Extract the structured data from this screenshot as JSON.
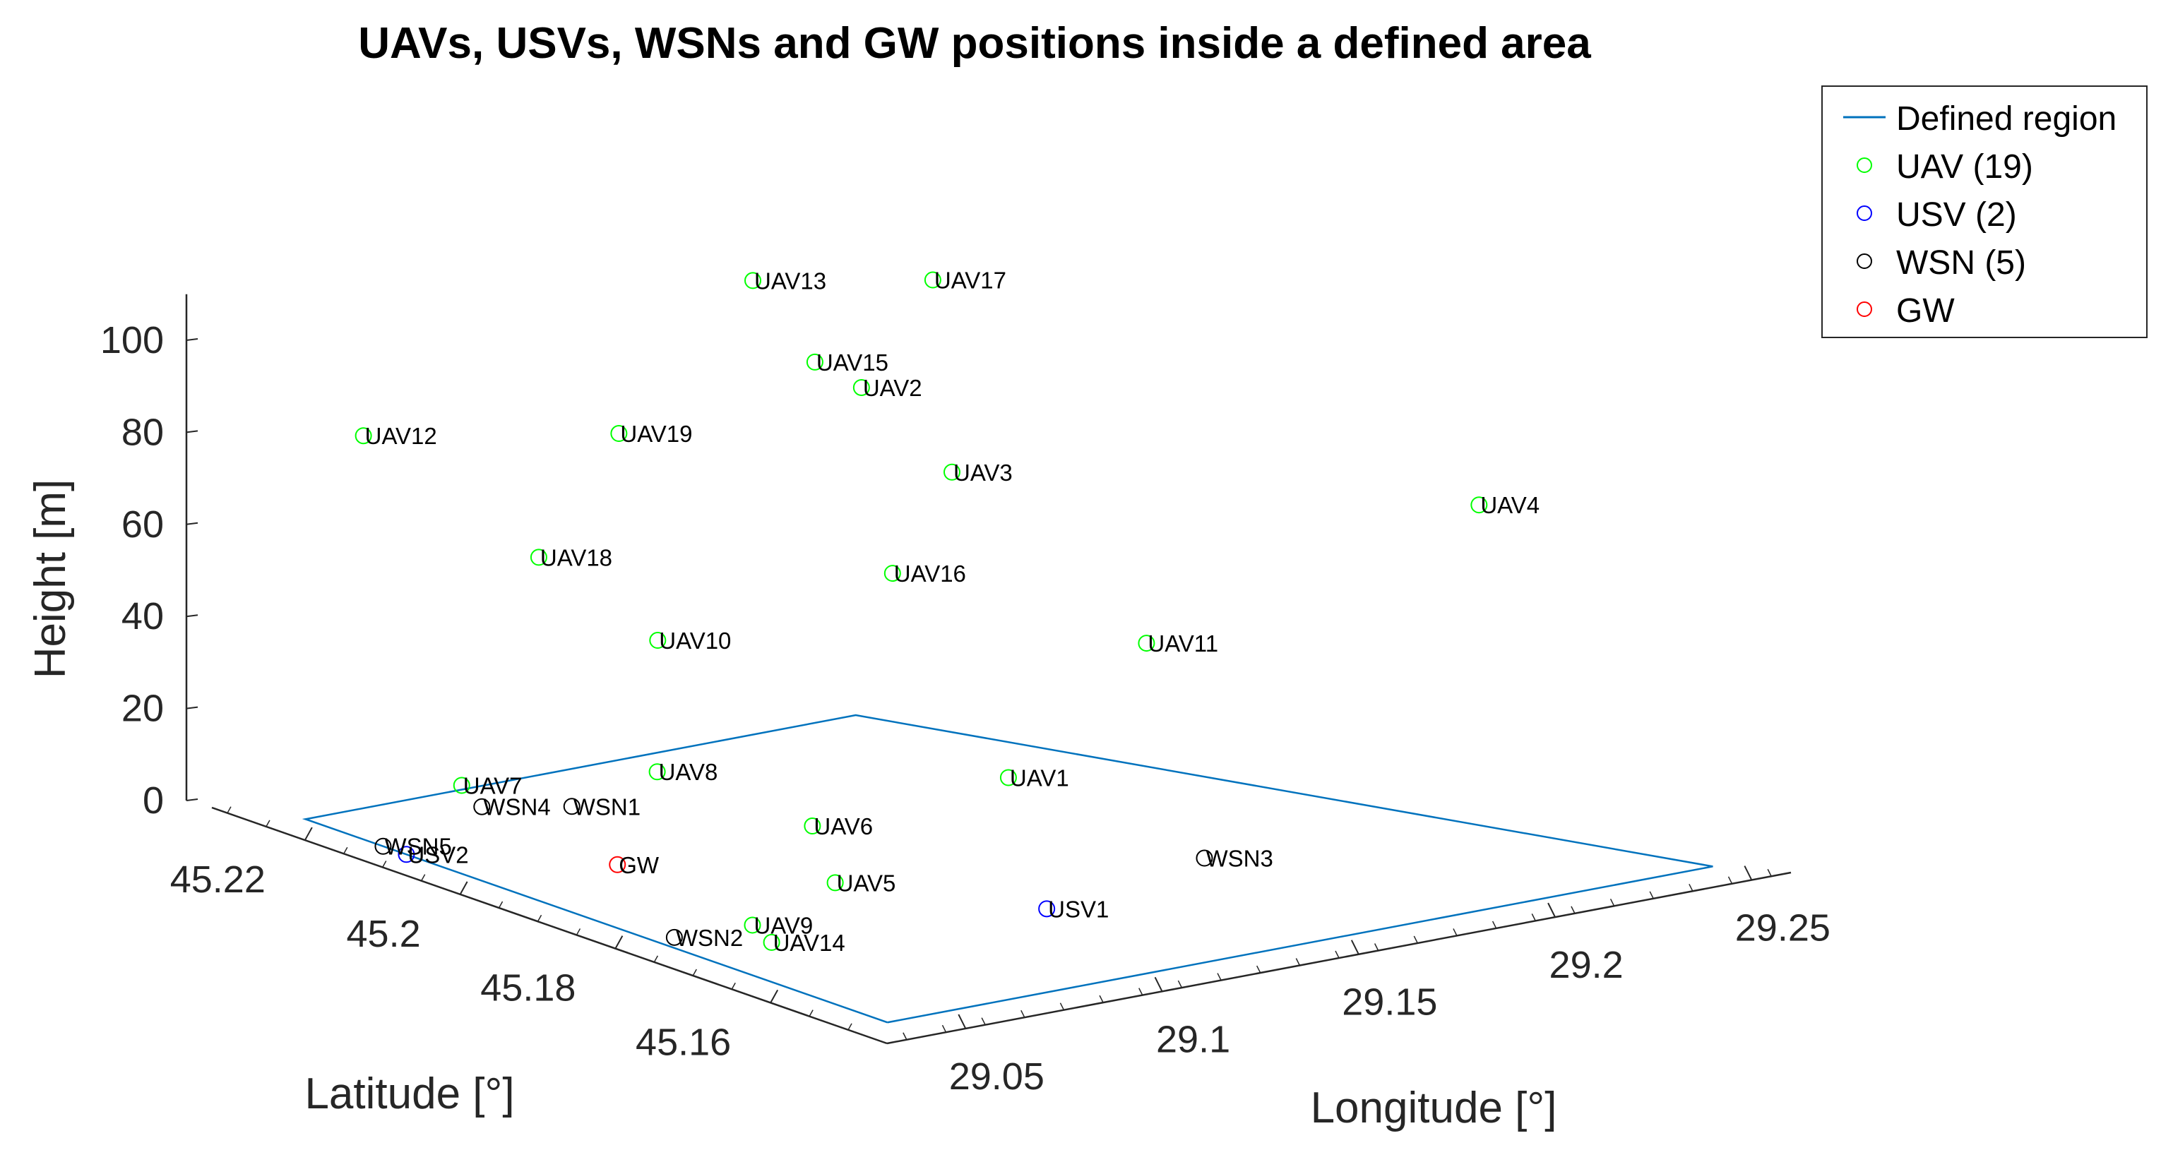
{
  "chart_data": {
    "type": "scatter",
    "projection": "3d",
    "title": "UAVs, USVs, WSNs and GW positions inside a defined area",
    "xlabel": "Longitude [°]",
    "ylabel": "Latitude [°]",
    "zlabel": "Height [m]",
    "xlim": [
      29.03,
      29.26
    ],
    "ylim": [
      45.145,
      45.232
    ],
    "zlim": [
      0,
      110
    ],
    "xticks": [
      "29.05",
      "29.1",
      "29.15",
      "29.2",
      "29.25"
    ],
    "yticks": [
      "45.16",
      "45.18",
      "45.2",
      "45.22"
    ],
    "zticks": [
      "0",
      "20",
      "40",
      "60",
      "80",
      "100"
    ],
    "grid": false,
    "legend_position": "top-right",
    "legend": [
      "Defined region",
      "UAV (19)",
      "USV (2)",
      "WSN (5)",
      "GW"
    ],
    "colors": {
      "region": "#0072BD",
      "UAV": "#00FF00",
      "USV": "#0000FF",
      "WSN": "#000000",
      "GW": "#FF0000"
    },
    "region": {
      "name": "Defined region",
      "lon": [
        29.04,
        29.25,
        29.18,
        29.04,
        29.04
      ],
      "lat": [
        45.15,
        45.15,
        45.225,
        45.225,
        45.15
      ],
      "height": [
        0,
        0,
        0,
        0,
        0
      ]
    },
    "series": [
      {
        "name": "UAV (19)",
        "kind": "UAV",
        "points": [
          {
            "label": "UAV1",
            "lon": 29.13,
            "lat": 45.18,
            "h": 21
          },
          {
            "label": "UAV2",
            "lon": 29.14,
            "lat": 45.204,
            "h": 90
          },
          {
            "label": "UAV3",
            "lon": 29.165,
            "lat": 45.205,
            "h": 67
          },
          {
            "label": "UAV4",
            "lon": 29.23,
            "lat": 45.17,
            "h": 70
          },
          {
            "label": "UAV5",
            "lon": 29.08,
            "lat": 45.177,
            "h": 8
          },
          {
            "label": "UAV6",
            "lon": 29.09,
            "lat": 45.185,
            "h": 14
          },
          {
            "label": "UAV7",
            "lon": 29.06,
            "lat": 45.215,
            "h": 10
          },
          {
            "label": "UAV8",
            "lon": 29.09,
            "lat": 45.205,
            "h": 14
          },
          {
            "label": "UAV9",
            "lon": 29.055,
            "lat": 45.175,
            "h": 4
          },
          {
            "label": "UAV10",
            "lon": 29.1,
            "lat": 45.21,
            "h": 38
          },
          {
            "label": "UAV11",
            "lon": 29.175,
            "lat": 45.185,
            "h": 40
          },
          {
            "label": "UAV12",
            "lon": 29.035,
            "lat": 45.215,
            "h": 90
          },
          {
            "label": "UAV13",
            "lon": 29.14,
            "lat": 45.218,
            "h": 105
          },
          {
            "label": "UAV14",
            "lon": 29.05,
            "lat": 45.17,
            "h": 4
          },
          {
            "label": "UAV15",
            "lon": 29.14,
            "lat": 45.21,
            "h": 92
          },
          {
            "label": "UAV16",
            "lon": 29.14,
            "lat": 45.2,
            "h": 52
          },
          {
            "label": "UAV17",
            "lon": 29.17,
            "lat": 45.21,
            "h": 105
          },
          {
            "label": "UAV18",
            "lon": 29.05,
            "lat": 45.2,
            "h": 70
          },
          {
            "label": "UAV19",
            "lon": 29.1,
            "lat": 45.215,
            "h": 80
          }
        ]
      },
      {
        "name": "USV (2)",
        "kind": "USV",
        "points": [
          {
            "label": "USV1",
            "lon": 29.12,
            "lat": 45.17,
            "h": 0
          },
          {
            "label": "USV2",
            "lon": 29.04,
            "lat": 45.212,
            "h": 0
          }
        ]
      },
      {
        "name": "WSN (5)",
        "kind": "WSN",
        "points": [
          {
            "label": "WSN1",
            "lon": 29.09,
            "lat": 45.216,
            "h": 0
          },
          {
            "label": "WSN2",
            "lon": 29.045,
            "lat": 45.18,
            "h": 0
          },
          {
            "label": "WSN3",
            "lon": 29.17,
            "lat": 45.175,
            "h": 0
          },
          {
            "label": "WSN4",
            "lon": 29.075,
            "lat": 45.22,
            "h": 0
          },
          {
            "label": "WSN5",
            "lon": 29.04,
            "lat": 45.215,
            "h": 0
          }
        ]
      },
      {
        "name": "GW",
        "kind": "GW",
        "points": [
          {
            "label": "GW",
            "lon": 29.07,
            "lat": 45.2,
            "h": 0
          }
        ]
      }
    ]
  }
}
